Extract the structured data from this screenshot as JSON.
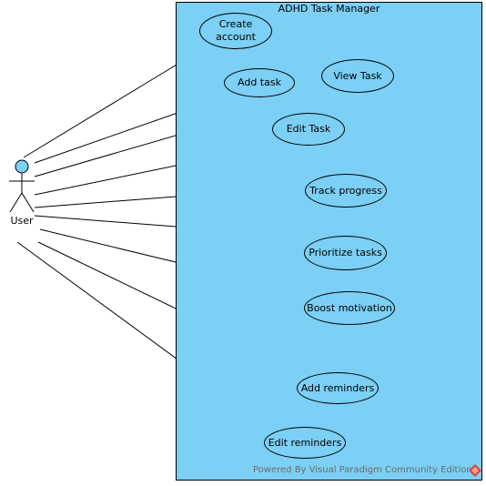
{
  "system": {
    "title": "ADHD Task Manager"
  },
  "actor": {
    "label": "User"
  },
  "use_cases": [
    {
      "id": "create-account",
      "label": "Create account"
    },
    {
      "id": "add-task",
      "label": "Add task"
    },
    {
      "id": "view-task",
      "label": "View Task"
    },
    {
      "id": "edit-task",
      "label": "Edit Task"
    },
    {
      "id": "track-progress",
      "label": "Track progress"
    },
    {
      "id": "prioritize-tasks",
      "label": "Prioritize tasks"
    },
    {
      "id": "boost-motivation",
      "label": "Boost motivation"
    },
    {
      "id": "add-reminders",
      "label": "Add reminders"
    },
    {
      "id": "edit-reminders",
      "label": "Edit reminders"
    }
  ],
  "footer": {
    "watermark": "Powered By Visual Paradigm Community Edition"
  },
  "colors": {
    "system_fill": "#7ccff5",
    "usecase_fill": "#7ccff5",
    "actor_head_fill": "#7ccff5",
    "line": "#000000"
  }
}
